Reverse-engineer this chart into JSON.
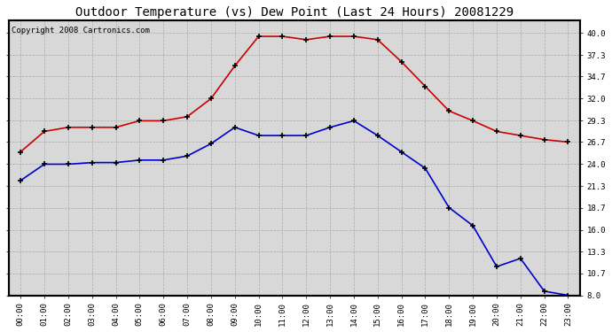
{
  "title": "Outdoor Temperature (vs) Dew Point (Last 24 Hours) 20081229",
  "copyright": "Copyright 2008 Cartronics.com",
  "hours": [
    "00:00",
    "01:00",
    "02:00",
    "03:00",
    "04:00",
    "05:00",
    "06:00",
    "07:00",
    "08:00",
    "09:00",
    "10:00",
    "11:00",
    "12:00",
    "13:00",
    "14:00",
    "15:00",
    "16:00",
    "17:00",
    "18:00",
    "19:00",
    "20:00",
    "21:00",
    "22:00",
    "23:00"
  ],
  "temp_f": [
    25.5,
    28.0,
    28.5,
    28.5,
    28.5,
    29.3,
    29.3,
    29.8,
    32.0,
    36.0,
    39.6,
    39.6,
    39.2,
    39.6,
    39.6,
    39.2,
    36.5,
    33.5,
    30.5,
    29.3,
    28.0,
    27.5,
    27.0,
    26.7
  ],
  "dew_f": [
    22.0,
    24.0,
    24.0,
    24.2,
    24.2,
    24.5,
    24.5,
    25.0,
    26.5,
    28.5,
    27.5,
    27.5,
    27.5,
    28.5,
    29.3,
    27.5,
    25.5,
    23.5,
    18.7,
    16.5,
    11.5,
    12.5,
    8.5,
    8.0
  ],
  "temp_color": "#cc0000",
  "dew_color": "#0000cc",
  "bg_color": "#ffffff",
  "plot_bg_color": "#d8d8d8",
  "grid_color": "#aaaaaa",
  "ylim": [
    8.0,
    41.5
  ],
  "yticks_right": [
    8.0,
    10.7,
    13.3,
    16.0,
    18.7,
    21.3,
    24.0,
    26.7,
    29.3,
    32.0,
    34.7,
    37.3,
    40.0
  ],
  "title_fontsize": 10,
  "copyright_fontsize": 6.5,
  "marker_size": 4,
  "linewidth": 1.2
}
